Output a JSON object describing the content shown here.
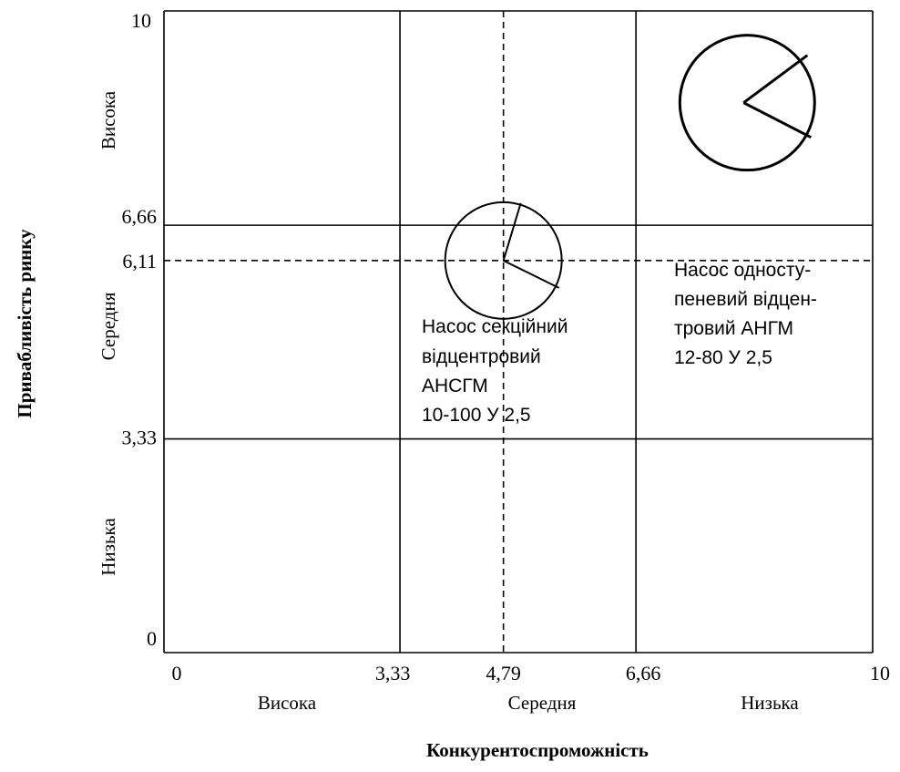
{
  "chart_data": {
    "type": "matrix",
    "xlabel": "Конкурентоспроможність",
    "ylabel": "Привабливість ринку",
    "xlim": [
      0,
      10
    ],
    "ylim": [
      0,
      10
    ],
    "x_ticks": [
      "0",
      "3,33",
      "4,79",
      "6,66",
      "10"
    ],
    "y_ticks": [
      "0",
      "3,33",
      "6,11",
      "6,66",
      "10"
    ],
    "x_bands": [
      "Висока",
      "Середня",
      "Низька"
    ],
    "y_bands": [
      "Низька",
      "Середня",
      "Висока"
    ],
    "grid_lines": [
      3.33,
      6.66
    ],
    "reference_point": {
      "x": 4.79,
      "y": 6.11
    },
    "products": [
      {
        "label_lines": [
          "Насос секційний",
          "відцентровий",
          "АНСГМ",
          "10-100 У 2,5"
        ],
        "x": 4.79,
        "y": 6.11
      },
      {
        "label_lines": [
          "Насос односту-",
          "пеневий відцен-",
          "тровий АНГМ",
          "12-80 У 2,5"
        ],
        "x": 8.23,
        "y": 8.57
      }
    ]
  }
}
